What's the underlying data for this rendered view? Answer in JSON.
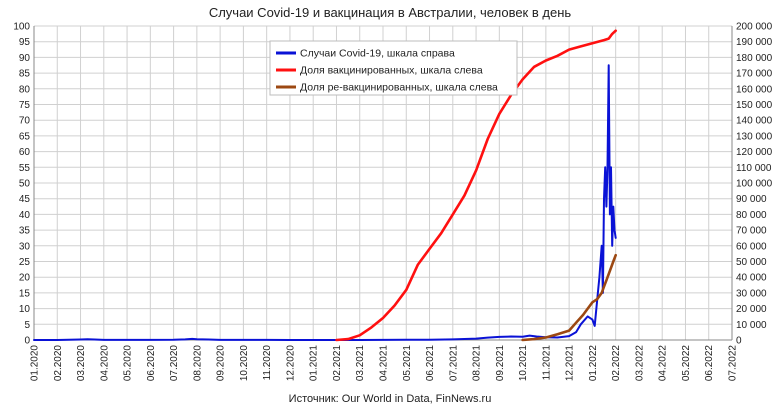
{
  "chart_data": {
    "type": "line",
    "title": "Случаи Covid-19 и вакцинация в Австралии, человек в день",
    "source": "Источник: Our World in Data, FinNews.ru",
    "x_axis": {
      "ticks": [
        "01.2020",
        "02.2020",
        "03.2020",
        "04.2020",
        "05.2020",
        "06.2020",
        "07.2020",
        "08.2020",
        "09.2020",
        "10.2020",
        "11.2020",
        "12.2020",
        "01.2021",
        "02.2021",
        "03.2021",
        "04.2021",
        "05.2021",
        "06.2021",
        "07.2021",
        "08.2021",
        "09.2021",
        "10.2021",
        "11.2021",
        "12.2021",
        "01.2022",
        "02.2022",
        "03.2022",
        "04.2022",
        "05.2022",
        "06.2022",
        "07.2022"
      ]
    },
    "y_left": {
      "range": [
        0,
        100
      ],
      "ticks": [
        "0",
        "5",
        "10",
        "15",
        "20",
        "25",
        "30",
        "35",
        "40",
        "45",
        "50",
        "55",
        "60",
        "65",
        "70",
        "75",
        "80",
        "85",
        "90",
        "95",
        "100"
      ]
    },
    "y_right": {
      "range": [
        0,
        200000
      ],
      "ticks": [
        "0",
        "10 000",
        "20 000",
        "30 000",
        "40 000",
        "50 000",
        "60 000",
        "70 000",
        "80 000",
        "90 000",
        "100 000",
        "110 000",
        "120 000",
        "130 000",
        "140 000",
        "150 000",
        "160 000",
        "170 000",
        "180 000",
        "190 000",
        "200 000"
      ]
    },
    "grid": true,
    "legend_position": "top-center",
    "series": [
      {
        "name": "Случаи Covid-19, шкала справа",
        "axis": "right",
        "color": "#0a12d6",
        "x": [
          0,
          1,
          1.5,
          2,
          2.3,
          2.6,
          3,
          4,
          5,
          6,
          6.5,
          6.8,
          7,
          7.5,
          8,
          9,
          10,
          11,
          12,
          13,
          14,
          15,
          16,
          17,
          18,
          19,
          19.5,
          20,
          20.5,
          21,
          21.3,
          21.6,
          22,
          22.5,
          23,
          23.3,
          23.5,
          23.8,
          24,
          24.1,
          24.2,
          24.3,
          24.4,
          24.45,
          24.5,
          24.55,
          24.6,
          24.65,
          24.7,
          24.75,
          24.8,
          24.85,
          24.9,
          24.95,
          25.0
        ],
        "y": [
          0,
          0,
          100,
          300,
          500,
          300,
          50,
          50,
          50,
          100,
          400,
          700,
          500,
          300,
          50,
          50,
          50,
          20,
          20,
          20,
          20,
          50,
          100,
          200,
          400,
          900,
          1500,
          2000,
          2200,
          2100,
          2800,
          2200,
          1800,
          1600,
          2500,
          5000,
          10000,
          15000,
          13000,
          9000,
          25000,
          40000,
          60000,
          30000,
          90000,
          110000,
          85000,
          110000,
          175000,
          80000,
          110000,
          60000,
          85000,
          70000,
          65000
        ]
      },
      {
        "name": "Доля вакцинированных, шкала слева",
        "axis": "left",
        "color": "#ff1010",
        "x": [
          13,
          13.5,
          14,
          14.5,
          15,
          15.5,
          16,
          16.5,
          17,
          17.5,
          18,
          18.5,
          19,
          19.5,
          20,
          20.5,
          21,
          21.5,
          22,
          22.5,
          23,
          23.5,
          24,
          24.5,
          24.7,
          24.85,
          25.0
        ],
        "y": [
          0,
          0.3,
          1.5,
          4,
          7,
          11,
          16,
          24,
          29,
          34,
          40,
          46,
          54,
          64,
          72,
          78,
          83,
          87,
          89,
          90.5,
          92.5,
          93.5,
          94.5,
          95.5,
          96,
          97.5,
          98.5
        ]
      },
      {
        "name": "Доля ре-вакцинированных, шкала слева",
        "axis": "left",
        "color": "#9c4812",
        "x": [
          21,
          21.5,
          22,
          22.5,
          23,
          23.3,
          23.6,
          23.8,
          24,
          24.2,
          24.4,
          24.5,
          24.6,
          24.7,
          24.8,
          24.9,
          25.0
        ],
        "y": [
          0,
          0.3,
          0.8,
          1.8,
          3,
          5.5,
          8,
          10,
          12,
          13,
          15,
          17,
          19,
          21,
          23,
          25,
          27
        ]
      }
    ]
  }
}
